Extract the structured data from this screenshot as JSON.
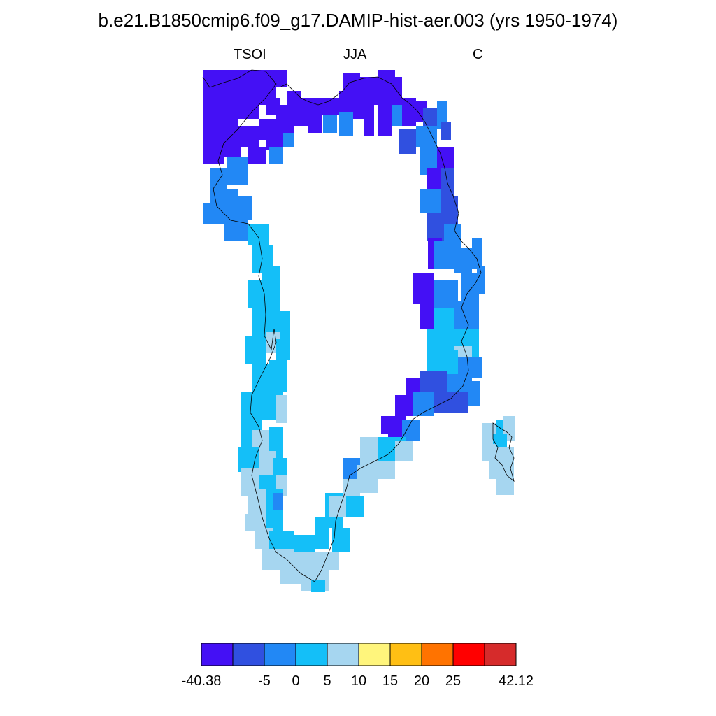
{
  "title": "b.e21.B1850cmip6.f09_g17.DAMIP-hist-aer.003 (yrs 1950-1974)",
  "subtitles": {
    "left": "TSOI",
    "center": "JJA",
    "right": "C"
  },
  "colors": {
    "level_1": "#4410f5",
    "level_2": "#3050e0",
    "level_3": "#2288f5",
    "level_4": "#14bff8",
    "level_5": "#a6d6f0",
    "level_6": "#fff57c",
    "level_7": "#ffbf14",
    "level_8": "#ff7300",
    "level_9": "#ff0000",
    "level_10": "#d62b2b",
    "coastline": "#000000"
  },
  "colorbar": {
    "levels": [
      "level_1",
      "level_2",
      "level_3",
      "level_4",
      "level_5",
      "level_6",
      "level_7",
      "level_8",
      "level_9",
      "level_10"
    ],
    "labels": [
      "-40.38",
      "-5",
      "0",
      "5",
      "10",
      "15",
      "20",
      "25",
      "42.12"
    ]
  }
}
